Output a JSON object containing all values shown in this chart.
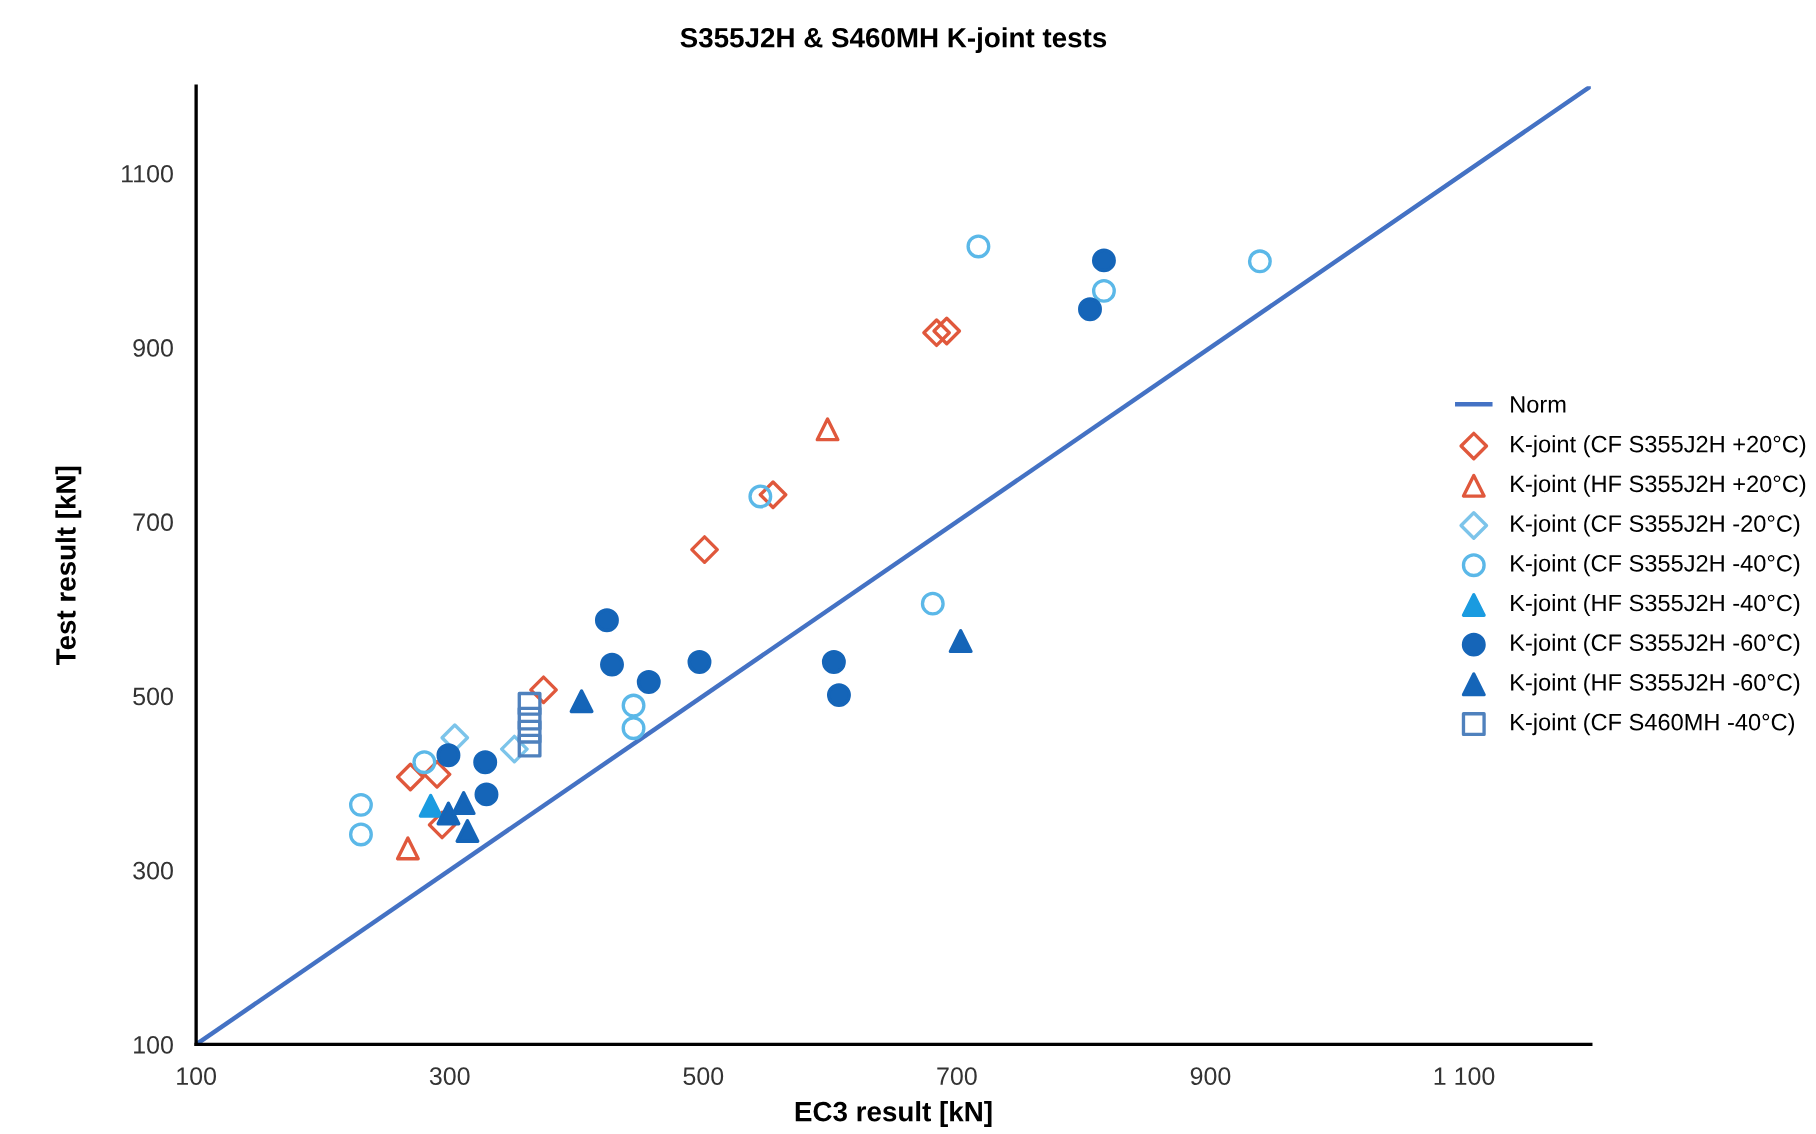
{
  "chart_data": {
    "type": "scatter",
    "title": "S355J2H & S460MH K-joint tests",
    "xlabel": "EC3 result [kN]",
    "ylabel": "Test result [kN]",
    "xlim": [
      100,
      1200
    ],
    "ylim": [
      100,
      1200
    ],
    "xticks": [
      100,
      300,
      500,
      700,
      900,
      {
        "value": 1100,
        "label": "1 100"
      }
    ],
    "yticks": [
      100,
      300,
      500,
      700,
      900,
      1100
    ],
    "grid": false,
    "legend": "right",
    "series": [
      {
        "name": "Norm",
        "type": "line",
        "color": "#4472c4",
        "marker": "none",
        "x": [
          100,
          1200
        ],
        "values": [
          100,
          1200
        ]
      },
      {
        "name": "K-joint (CF S355J2H +20°C)",
        "color": "#e0583c",
        "marker": "diamond",
        "x": [
          501,
          374,
          269,
          290,
          294,
          555,
          684,
          692
        ],
        "values": [
          668,
          507,
          407,
          410,
          352,
          731,
          917,
          919
        ]
      },
      {
        "name": "K-joint (HF S355J2H +20°C)",
        "color": "#e0583c",
        "marker": "triangle",
        "x": [
          267,
          598
        ],
        "values": [
          325,
          806
        ]
      },
      {
        "name": "K-joint (CF S355J2H -20°C)",
        "color": "#7cc4ea",
        "marker": "diamond",
        "x": [
          304,
          351
        ],
        "values": [
          452,
          439
        ]
      },
      {
        "name": "K-joint (CF S355J2H -40°C)",
        "color": "#5bb8e8",
        "marker": "circle",
        "x": [
          445,
          445,
          280,
          230,
          230,
          545,
          717,
          816,
          939,
          681
        ],
        "values": [
          489,
          463,
          424,
          375,
          341,
          729,
          1016,
          965,
          999,
          606
        ]
      },
      {
        "name": "K-joint (HF S355J2H -40°C)",
        "color": "#1a9be0",
        "marker": "triangle",
        "x": [
          285
        ],
        "values": [
          374
        ]
      },
      {
        "name": "K-joint (CF S355J2H -60°C)",
        "color": "#1565b8",
        "marker": "circle",
        "x": [
          424,
          428,
          457,
          497,
          603,
          607,
          299,
          328,
          329,
          816,
          805
        ],
        "values": [
          587,
          536,
          516,
          539,
          539,
          501,
          432,
          424,
          387,
          1000,
          944
        ]
      },
      {
        "name": "K-joint (HF S355J2H -60°C)",
        "color": "#1565b8",
        "marker": "triangle",
        "x": [
          404,
          299,
          311,
          314,
          703
        ],
        "values": [
          494,
          365,
          377,
          345,
          563
        ]
      },
      {
        "name": "K-joint (CF S460MH -40°C)",
        "color": "#4f81bd",
        "marker": "square",
        "x": [
          363,
          363,
          363,
          363
        ],
        "values": [
          491,
          474,
          459,
          443
        ]
      }
    ]
  }
}
